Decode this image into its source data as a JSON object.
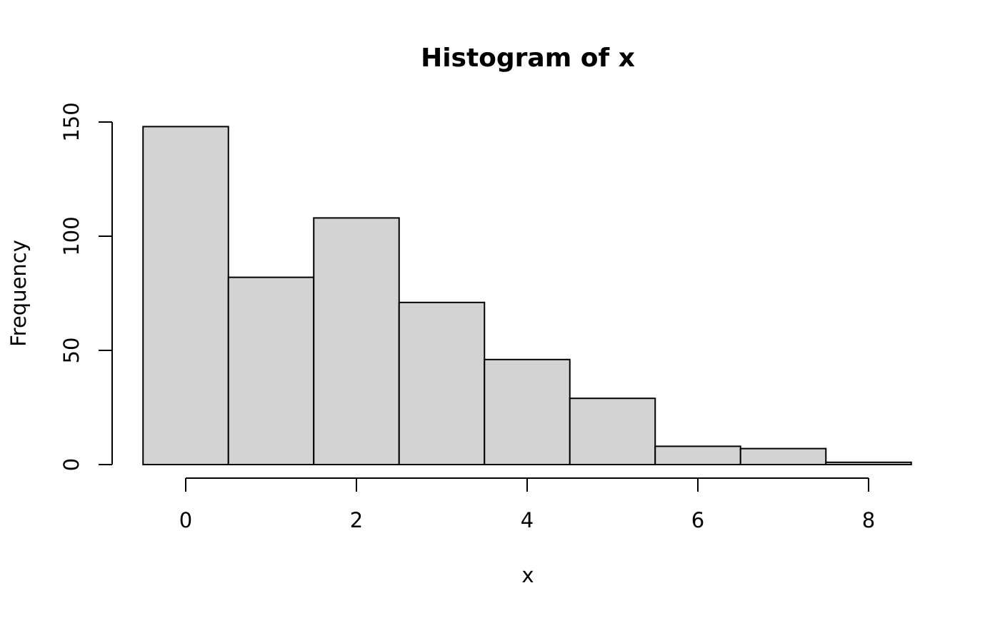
{
  "chart_data": {
    "type": "bar",
    "title": "Histogram of x",
    "xlabel": "x",
    "ylabel": "Frequency",
    "bin_edges": [
      -0.5,
      0.5,
      1.5,
      2.5,
      3.5,
      4.5,
      5.5,
      6.5,
      7.5,
      8.5
    ],
    "values": [
      148,
      82,
      108,
      71,
      46,
      29,
      8,
      7,
      1
    ],
    "xticks": [
      0,
      2,
      4,
      6,
      8
    ],
    "yticks": [
      0,
      50,
      100,
      150
    ],
    "xlim": [
      -0.5,
      8.5
    ],
    "ylim": [
      0,
      150
    ],
    "grid": false,
    "bar_fill": "#d3d3d3",
    "bar_stroke": "#000000"
  }
}
